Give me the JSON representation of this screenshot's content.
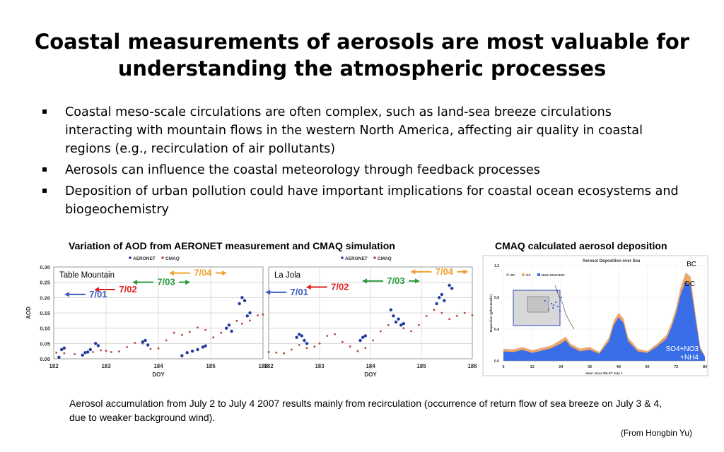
{
  "slide": {
    "title": "Coastal measurements of aerosols are most valuable for understanding the atmospheric processes",
    "bullets": [
      "Coastal meso-scale circulations are often complex, such as land-sea breeze circulations interacting with mountain flows in the western North America, affecting air quality in coastal regions (e.g., recirculation of air pollutants)",
      "Aerosols can influence the coastal meteorology through feedback processes",
      "Deposition of urban pollution could have important implications for coastal ocean ecosystems and biogeochemistry"
    ],
    "left_caption": "Variation of AOD from AERONET measurement and CMAQ simulation",
    "right_caption": "CMAQ calculated aerosol deposition",
    "footnote": "Aerosol accumulation from July 2 to July 4 2007 results mainly from recirculation (occurrence of return flow of sea breeze on July 3 & 4, due to weaker background wind).",
    "credit": "(From Hongbin Yu)"
  },
  "chart_data": [
    {
      "type": "scatter",
      "panel": "Table Mountain",
      "ylabel": "AOD",
      "xlabel": "DOY",
      "xlim": [
        182,
        186
      ],
      "ylim": [
        0,
        0.3
      ],
      "xticks": [
        "182",
        "183",
        "184",
        "185",
        "186"
      ],
      "yticks": [
        "0.00",
        "0.05",
        "0.10",
        "0.15",
        "0.20",
        "0.25",
        "0.30"
      ],
      "legend": [
        "AERONET",
        "CMAQ"
      ],
      "colors": {
        "AERONET": "#1f3aa0",
        "CMAQ": "#b5453a"
      },
      "annotations": [
        {
          "label": "7/01",
          "color": "#3a5ec0",
          "arrow": "left",
          "doy": 182.85,
          "aod": 0.201
        },
        {
          "label": "7/02",
          "color": "#e02020",
          "arrow": "left",
          "doy": 183.42,
          "aod": 0.217
        },
        {
          "label": "7/03",
          "color": "#2e9a3e",
          "arrow": "both",
          "doy": 184.15,
          "aod": 0.241
        },
        {
          "label": "7/04",
          "color": "#f0a030",
          "arrow": "both",
          "doy": 184.85,
          "aod": 0.271
        }
      ],
      "series": [
        {
          "name": "CMAQ",
          "points": [
            [
              182.05,
              0.02
            ],
            [
              182.2,
              0.018
            ],
            [
              182.4,
              0.015
            ],
            [
              182.6,
              0.02
            ],
            [
              182.75,
              0.022
            ],
            [
              182.9,
              0.028
            ],
            [
              183.0,
              0.026
            ],
            [
              183.1,
              0.022
            ],
            [
              183.25,
              0.024
            ],
            [
              183.4,
              0.038
            ],
            [
              183.55,
              0.052
            ],
            [
              183.7,
              0.05
            ],
            [
              183.85,
              0.032
            ],
            [
              184.0,
              0.034
            ],
            [
              184.15,
              0.06
            ],
            [
              184.3,
              0.085
            ],
            [
              184.45,
              0.078
            ],
            [
              184.6,
              0.088
            ],
            [
              184.75,
              0.102
            ],
            [
              184.9,
              0.094
            ],
            [
              185.05,
              0.07
            ],
            [
              185.2,
              0.085
            ],
            [
              185.35,
              0.11
            ],
            [
              185.5,
              0.124
            ],
            [
              185.6,
              0.115
            ],
            [
              185.75,
              0.125
            ],
            [
              185.9,
              0.142
            ],
            [
              186.0,
              0.145
            ]
          ]
        },
        {
          "name": "AERONET",
          "points": [
            [
              182.1,
              0.005
            ],
            [
              182.15,
              0.03
            ],
            [
              182.2,
              0.035
            ],
            [
              182.55,
              0.012
            ],
            [
              182.6,
              0.02
            ],
            [
              182.65,
              0.022
            ],
            [
              182.7,
              0.03
            ],
            [
              182.8,
              0.05
            ],
            [
              182.85,
              0.043
            ],
            [
              183.7,
              0.055
            ],
            [
              183.75,
              0.06
            ],
            [
              183.8,
              0.045
            ],
            [
              184.45,
              0.01
            ],
            [
              184.55,
              0.02
            ],
            [
              184.65,
              0.025
            ],
            [
              184.75,
              0.03
            ],
            [
              184.85,
              0.038
            ],
            [
              184.9,
              0.042
            ],
            [
              185.3,
              0.1
            ],
            [
              185.35,
              0.11
            ],
            [
              185.4,
              0.09
            ],
            [
              185.55,
              0.18
            ],
            [
              185.6,
              0.2
            ],
            [
              185.65,
              0.19
            ],
            [
              185.7,
              0.14
            ],
            [
              185.75,
              0.15
            ]
          ]
        }
      ]
    },
    {
      "type": "scatter",
      "panel": "La Jola",
      "xlabel": "DOY",
      "xlim": [
        182,
        186
      ],
      "ylim": [
        0,
        0.3
      ],
      "xticks": [
        "182",
        "183",
        "184",
        "185",
        "186"
      ],
      "legend": [
        "AERONET",
        "CMAQ"
      ],
      "colors": {
        "AERONET": "#1f3aa0",
        "CMAQ": "#b5453a"
      },
      "annotations": [
        {
          "label": "7/01",
          "color": "#3a5ec0",
          "arrow": "left",
          "doy": 182.6,
          "aod": 0.208
        },
        {
          "label": "7/02",
          "color": "#e02020",
          "arrow": "left",
          "doy": 183.4,
          "aod": 0.225
        },
        {
          "label": "7/03",
          "color": "#2e9a3e",
          "arrow": "both",
          "doy": 184.5,
          "aod": 0.245
        },
        {
          "label": "7/04",
          "color": "#f0a030",
          "arrow": "both",
          "doy": 185.45,
          "aod": 0.275
        }
      ],
      "series": [
        {
          "name": "CMAQ",
          "points": [
            [
              182.0,
              0.022
            ],
            [
              182.15,
              0.02
            ],
            [
              182.3,
              0.018
            ],
            [
              182.45,
              0.03
            ],
            [
              182.6,
              0.045
            ],
            [
              182.75,
              0.035
            ],
            [
              182.9,
              0.04
            ],
            [
              183.0,
              0.05
            ],
            [
              183.15,
              0.075
            ],
            [
              183.3,
              0.08
            ],
            [
              183.45,
              0.055
            ],
            [
              183.6,
              0.04
            ],
            [
              183.75,
              0.025
            ],
            [
              183.9,
              0.035
            ],
            [
              184.05,
              0.06
            ],
            [
              184.2,
              0.09
            ],
            [
              184.35,
              0.11
            ],
            [
              184.5,
              0.12
            ],
            [
              184.65,
              0.1
            ],
            [
              184.8,
              0.09
            ],
            [
              184.95,
              0.11
            ],
            [
              185.1,
              0.14
            ],
            [
              185.25,
              0.16
            ],
            [
              185.4,
              0.15
            ],
            [
              185.55,
              0.13
            ],
            [
              185.7,
              0.14
            ],
            [
              185.85,
              0.15
            ],
            [
              186.0,
              0.142
            ]
          ]
        },
        {
          "name": "AERONET",
          "points": [
            [
              182.55,
              0.07
            ],
            [
              182.6,
              0.08
            ],
            [
              182.65,
              0.075
            ],
            [
              182.7,
              0.06
            ],
            [
              182.75,
              0.05
            ],
            [
              183.8,
              0.06
            ],
            [
              183.85,
              0.07
            ],
            [
              183.9,
              0.075
            ],
            [
              184.4,
              0.16
            ],
            [
              184.45,
              0.14
            ],
            [
              184.5,
              0.12
            ],
            [
              184.55,
              0.13
            ],
            [
              184.6,
              0.11
            ],
            [
              184.65,
              0.115
            ],
            [
              185.3,
              0.18
            ],
            [
              185.35,
              0.2
            ],
            [
              185.4,
              0.21
            ],
            [
              185.45,
              0.19
            ],
            [
              185.55,
              0.24
            ],
            [
              185.6,
              0.23
            ]
          ]
        }
      ]
    },
    {
      "type": "area",
      "title": "Aerosol Deposition over Sea",
      "xlabel": "Hour since 00LST July 1",
      "ylabel": "Deposition (g/hectare/hr)",
      "xlim": [
        0,
        84
      ],
      "ylim": [
        0,
        1.2
      ],
      "xticks": [
        "0",
        "12",
        "24",
        "36",
        "48",
        "60",
        "72",
        "84"
      ],
      "yticks": [
        "0.0",
        "0.4",
        "0.8",
        "1.2"
      ],
      "legend": [
        "BC",
        "OC",
        "NH4+SO4+NO3"
      ],
      "labels": [
        "BC",
        "OC",
        "SO4+NO3\n+NH4"
      ],
      "colors": {
        "BC": "#bdbdbd",
        "OC": "#f4a560",
        "NH4+SO4+NO3": "#3a6ee8"
      },
      "x": [
        0,
        4,
        8,
        12,
        16,
        20,
        24,
        26,
        28,
        32,
        36,
        40,
        44,
        46,
        48,
        50,
        52,
        56,
        60,
        64,
        68,
        70,
        72,
        74,
        76,
        78,
        80,
        82,
        84
      ],
      "series": [
        {
          "name": "NH4+SO4+NO3",
          "values": [
            0.12,
            0.11,
            0.14,
            0.1,
            0.13,
            0.16,
            0.22,
            0.26,
            0.18,
            0.12,
            0.14,
            0.09,
            0.25,
            0.45,
            0.55,
            0.48,
            0.25,
            0.12,
            0.1,
            0.18,
            0.28,
            0.42,
            0.6,
            0.85,
            1.0,
            0.95,
            0.55,
            0.15,
            0.05
          ]
        },
        {
          "name": "OC",
          "values": [
            0.03,
            0.03,
            0.03,
            0.03,
            0.03,
            0.03,
            0.04,
            0.04,
            0.03,
            0.03,
            0.03,
            0.02,
            0.04,
            0.05,
            0.05,
            0.05,
            0.04,
            0.03,
            0.02,
            0.03,
            0.04,
            0.05,
            0.06,
            0.08,
            0.1,
            0.1,
            0.06,
            0.03,
            0.01
          ]
        },
        {
          "name": "BC",
          "values": [
            0.005,
            0.005,
            0.005,
            0.005,
            0.005,
            0.005,
            0.006,
            0.006,
            0.005,
            0.005,
            0.005,
            0.004,
            0.006,
            0.008,
            0.008,
            0.008,
            0.006,
            0.005,
            0.004,
            0.005,
            0.006,
            0.008,
            0.01,
            0.012,
            0.015,
            0.015,
            0.01,
            0.005,
            0.002
          ]
        }
      ]
    }
  ]
}
